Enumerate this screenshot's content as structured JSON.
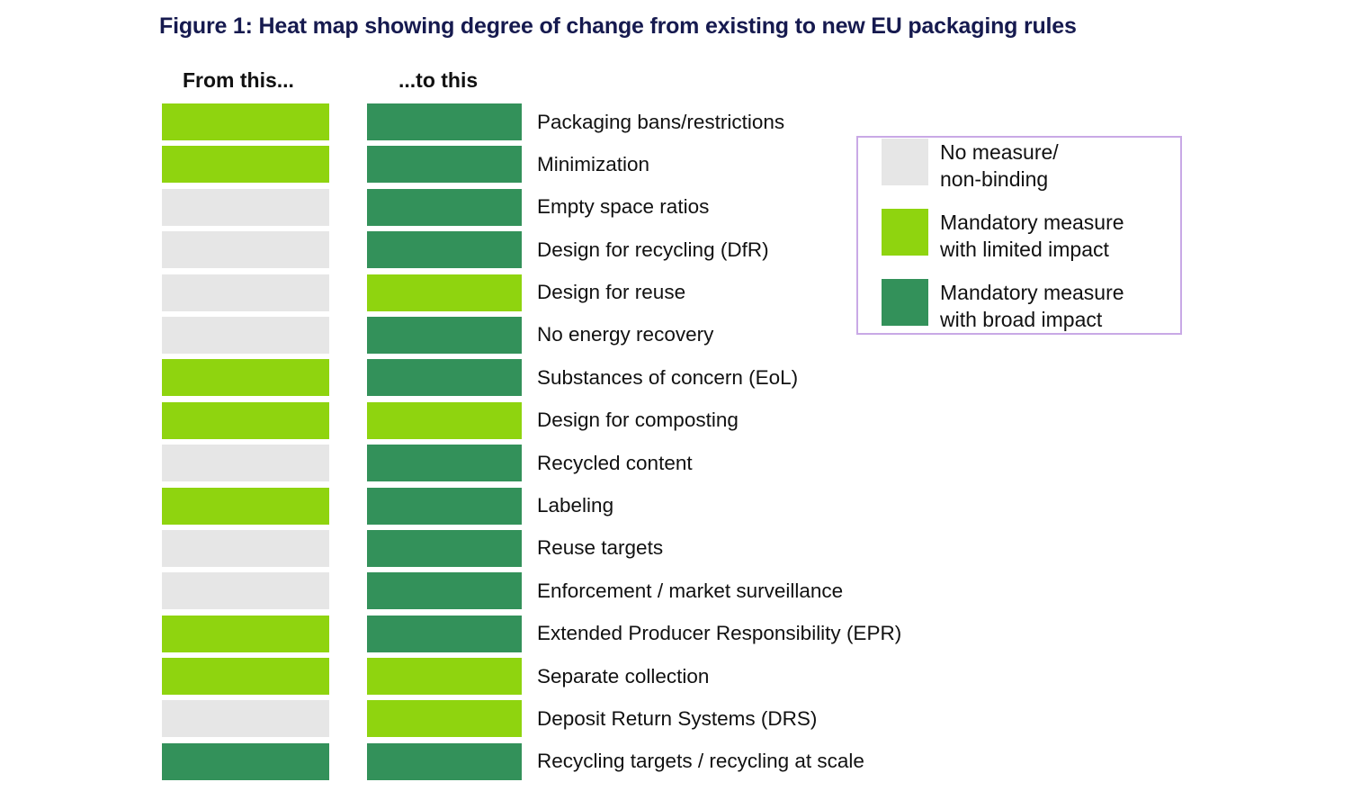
{
  "title": "Figure 1: Heat map showing degree of change from existing to new EU packaging rules",
  "column_headers": {
    "from": "From this...",
    "to": "...to this"
  },
  "colors": {
    "none": "#E6E6E6",
    "limited": "#8FD40F",
    "broad": "#33915A",
    "title": "#161A4F",
    "legend_border": "#C9A9E6"
  },
  "legend": {
    "items": [
      {
        "key": "none",
        "lines": [
          "No measure/",
          "non-binding"
        ]
      },
      {
        "key": "limited",
        "lines": [
          "Mandatory measure",
          "with limited impact"
        ]
      },
      {
        "key": "broad",
        "lines": [
          "Mandatory measure",
          "with broad impact"
        ]
      }
    ]
  },
  "rows": [
    {
      "label": "Packaging bans/restrictions",
      "from": "limited",
      "to": "broad"
    },
    {
      "label": "Minimization",
      "from": "limited",
      "to": "broad"
    },
    {
      "label": "Empty space ratios",
      "from": "none",
      "to": "broad"
    },
    {
      "label": "Design for recycling (DfR)",
      "from": "none",
      "to": "broad"
    },
    {
      "label": "Design for reuse",
      "from": "none",
      "to": "limited"
    },
    {
      "label": "No energy recovery",
      "from": "none",
      "to": "broad"
    },
    {
      "label": "Substances of concern (EoL)",
      "from": "limited",
      "to": "broad"
    },
    {
      "label": "Design for composting",
      "from": "limited",
      "to": "limited"
    },
    {
      "label": "Recycled content",
      "from": "none",
      "to": "broad"
    },
    {
      "label": "Labeling",
      "from": "limited",
      "to": "broad"
    },
    {
      "label": "Reuse targets",
      "from": "none",
      "to": "broad"
    },
    {
      "label": "Enforcement / market surveillance",
      "from": "none",
      "to": "broad"
    },
    {
      "label": "Extended Producer Responsibility (EPR)",
      "from": "limited",
      "to": "broad"
    },
    {
      "label": "Separate collection",
      "from": "limited",
      "to": "limited"
    },
    {
      "label": "Deposit Return Systems (DRS)",
      "from": "none",
      "to": "limited"
    },
    {
      "label": "Recycling targets / recycling at scale",
      "from": "broad",
      "to": "broad"
    }
  ],
  "chart_data": {
    "type": "heatmap",
    "title": "Figure 1: Heat map showing degree of change from existing to new EU packaging rules",
    "columns": [
      "From this...",
      "...to this"
    ],
    "categories": [
      "Packaging bans/restrictions",
      "Minimization",
      "Empty space ratios",
      "Design for recycling (DfR)",
      "Design for reuse",
      "No energy recovery",
      "Substances of concern (EoL)",
      "Design for composting",
      "Recycled content",
      "Labeling",
      "Reuse targets",
      "Enforcement / market surveillance",
      "Extended Producer Responsibility (EPR)",
      "Separate collection",
      "Deposit Return Systems (DRS)",
      "Recycling targets / recycling at scale"
    ],
    "values": [
      [
        "limited",
        "broad"
      ],
      [
        "limited",
        "broad"
      ],
      [
        "none",
        "broad"
      ],
      [
        "none",
        "broad"
      ],
      [
        "none",
        "limited"
      ],
      [
        "none",
        "broad"
      ],
      [
        "limited",
        "broad"
      ],
      [
        "limited",
        "limited"
      ],
      [
        "none",
        "broad"
      ],
      [
        "limited",
        "broad"
      ],
      [
        "none",
        "broad"
      ],
      [
        "none",
        "broad"
      ],
      [
        "limited",
        "broad"
      ],
      [
        "limited",
        "limited"
      ],
      [
        "none",
        "limited"
      ],
      [
        "broad",
        "broad"
      ]
    ],
    "value_scale": {
      "none": "No measure/non-binding",
      "limited": "Mandatory measure with limited impact",
      "broad": "Mandatory measure with broad impact"
    },
    "color_map": {
      "none": "#E6E6E6",
      "limited": "#8FD40F",
      "broad": "#33915A"
    },
    "legend_position": "right",
    "grid": false
  }
}
